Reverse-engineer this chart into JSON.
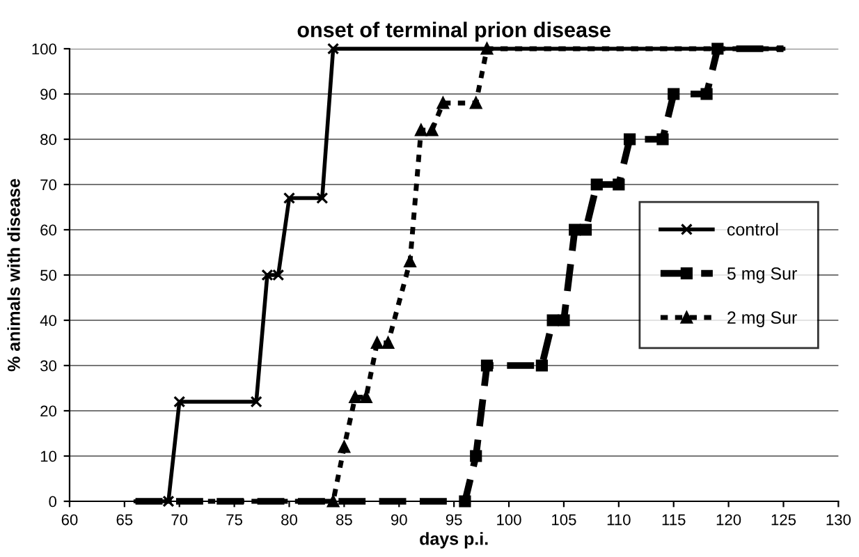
{
  "chart_data": {
    "type": "line",
    "title": "onset of terminal prion disease",
    "xlabel": "days p.i.",
    "ylabel": "% animals with disease",
    "xlim": [
      60,
      130
    ],
    "xticks": [
      60,
      65,
      70,
      75,
      80,
      85,
      90,
      95,
      100,
      105,
      110,
      115,
      120,
      125,
      130
    ],
    "ylim": [
      0,
      100
    ],
    "yticks": [
      0,
      10,
      20,
      30,
      40,
      50,
      60,
      70,
      80,
      90,
      100
    ],
    "grid": "y",
    "legend": "right",
    "series": [
      {
        "name": "control",
        "color": "#000000",
        "marker": "cross",
        "line_style": "solid",
        "x": [
          66,
          69,
          70,
          77,
          78,
          79,
          80,
          83,
          84,
          125
        ],
        "values": [
          0,
          0,
          22,
          22,
          50,
          50,
          67,
          67,
          100,
          100
        ]
      },
      {
        "name": "5 mg Sur",
        "color": "#000000",
        "marker": "square",
        "line_style": "dashed",
        "x": [
          66,
          96,
          97,
          98,
          103,
          104,
          105,
          106,
          107,
          108,
          110,
          111,
          114,
          115,
          118,
          119,
          125
        ],
        "values": [
          0,
          0,
          10,
          30,
          30,
          40,
          40,
          60,
          60,
          70,
          70,
          80,
          80,
          90,
          90,
          100,
          100
        ]
      },
      {
        "name": "2 mg Sur",
        "color": "#000000",
        "marker": "triangle",
        "line_style": "dotted",
        "x": [
          66,
          84,
          85,
          86,
          87,
          88,
          89,
          91,
          92,
          93,
          94,
          97,
          98,
          125
        ],
        "values": [
          0,
          0,
          12,
          23,
          23,
          35,
          35,
          53,
          82,
          82,
          88,
          88,
          100,
          100
        ]
      }
    ]
  }
}
